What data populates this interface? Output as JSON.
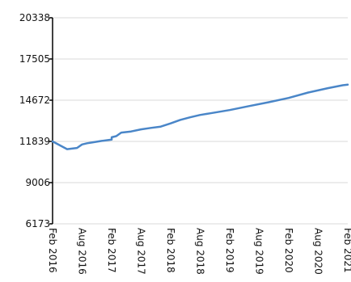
{
  "chart_data": {
    "type": "line",
    "title": "",
    "xlabel": "",
    "ylabel": "",
    "ylim": [
      6173,
      20338
    ],
    "yticks": [
      "20338",
      "17505",
      "14672",
      "11839",
      "9006",
      "6173"
    ],
    "ytick_values": [
      20338,
      17505,
      14672,
      11839,
      9006,
      6173
    ],
    "xticks": [
      "Feb 2016",
      "Aug 2016",
      "Feb 2017",
      "Aug 2017",
      "Feb 2018",
      "Aug 2018",
      "Feb 2019",
      "Aug 2019",
      "Feb 2020",
      "Aug 2020",
      "Feb 2021"
    ],
    "grid": true,
    "legend": "none",
    "colors": {
      "series": "#4a86c8",
      "grid": "#d9d9d9",
      "axis": "#000000"
    },
    "series": [
      {
        "x": [
          "2016-02",
          "2016-05",
          "2016-07",
          "2016-08",
          "2016-09",
          "2016-10",
          "2016-12",
          "2017-02",
          "2017-02",
          "2017-03",
          "2017-04",
          "2017-06",
          "2017-08",
          "2017-10",
          "2017-12",
          "2018-02",
          "2018-04",
          "2018-06",
          "2018-08",
          "2018-10",
          "2019-02",
          "2019-06",
          "2019-10",
          "2020-02",
          "2020-06",
          "2020-10",
          "2021-01",
          "2021-02"
        ],
        "values": [
          11839,
          11306,
          11389,
          11628,
          11711,
          11761,
          11872,
          11965,
          12124,
          12200,
          12445,
          12520,
          12668,
          12767,
          12853,
          13078,
          13318,
          13493,
          13657,
          13767,
          13993,
          14268,
          14535,
          14827,
          15202,
          15502,
          15702,
          15740
        ]
      }
    ]
  }
}
